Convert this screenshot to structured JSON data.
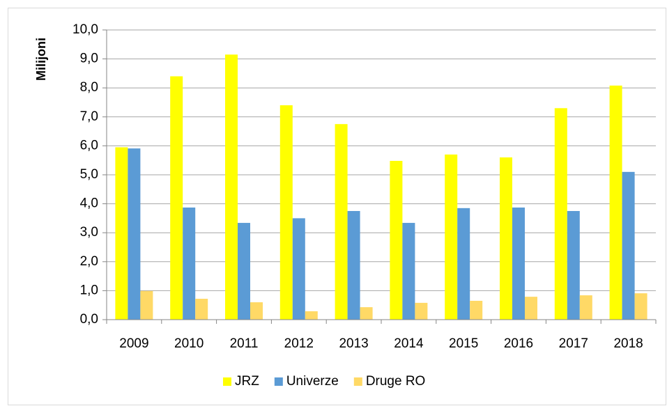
{
  "chart_data": {
    "type": "bar",
    "y_label": "Milijoni",
    "categories": [
      "2009",
      "2010",
      "2011",
      "2012",
      "2013",
      "2014",
      "2015",
      "2016",
      "2017",
      "2018"
    ],
    "series": [
      {
        "name": "JRZ",
        "color": "#ffff00",
        "values": [
          5.95,
          8.4,
          9.15,
          7.4,
          6.75,
          5.48,
          5.7,
          5.6,
          7.3,
          8.08
        ]
      },
      {
        "name": "Univerze",
        "color": "#5b9bd5",
        "values": [
          5.91,
          3.87,
          3.34,
          3.5,
          3.75,
          3.34,
          3.85,
          3.87,
          3.75,
          5.1
        ]
      },
      {
        "name": "Druge RO",
        "color": "#ffd966",
        "values": [
          0.99,
          0.72,
          0.6,
          0.29,
          0.43,
          0.58,
          0.65,
          0.79,
          0.84,
          0.91
        ]
      }
    ],
    "ylim": [
      0,
      10
    ],
    "yticks": [
      {
        "value": 0,
        "label": "0,0"
      },
      {
        "value": 1,
        "label": "1,0"
      },
      {
        "value": 2,
        "label": "2,0"
      },
      {
        "value": 3,
        "label": "3,0"
      },
      {
        "value": 4,
        "label": "4,0"
      },
      {
        "value": 5,
        "label": "5,0"
      },
      {
        "value": 6,
        "label": "6,0"
      },
      {
        "value": 7,
        "label": "7,0"
      },
      {
        "value": 8,
        "label": "8,0"
      },
      {
        "value": 9,
        "label": "9,0"
      },
      {
        "value": 10,
        "label": "10,0"
      }
    ],
    "grid": true,
    "legend": "bottom"
  }
}
